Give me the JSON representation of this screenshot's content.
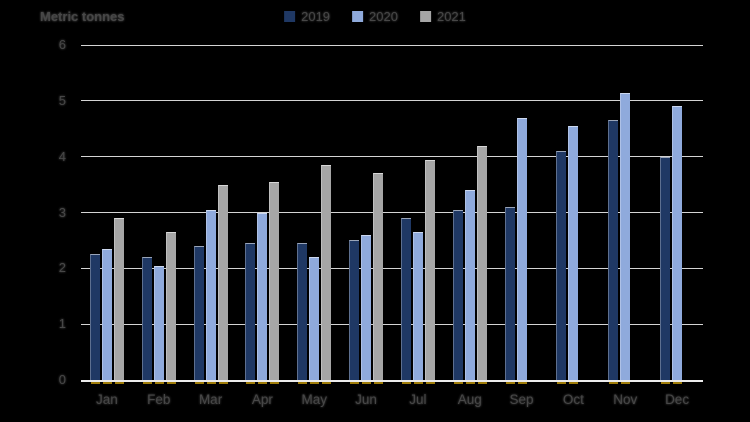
{
  "axis_title": "Metric tonnes",
  "legend": [
    {
      "label": "2019",
      "color": "#1F3864"
    },
    {
      "label": "2020",
      "color": "#8FAADC"
    },
    {
      "label": "2021",
      "color": "#A6A6A6"
    }
  ],
  "colors": {
    "background": "#000000",
    "gridline": "#D4D4D4",
    "axis_line": "#ECECEC",
    "text": "#474747",
    "bar_2019": "#1F3864",
    "bar_2020": "#8FAADC",
    "bar_2021": "#A6A6A6",
    "bar_base_tick": "#A07D0A"
  },
  "chart_data": {
    "type": "bar",
    "title": "Metric tonnes",
    "categories": [
      "Jan",
      "Feb",
      "Mar",
      "Apr",
      "May",
      "Jun",
      "Jul",
      "Aug",
      "Sep",
      "Oct",
      "Nov",
      "Dec"
    ],
    "series": [
      {
        "name": "2019",
        "color": "#1F3864",
        "values": [
          2.25,
          2.2,
          2.4,
          2.45,
          2.45,
          2.5,
          2.9,
          3.05,
          3.1,
          4.1,
          4.65,
          4.0
        ]
      },
      {
        "name": "2020",
        "color": "#8FAADC",
        "values": [
          2.35,
          2.05,
          3.05,
          3.0,
          2.2,
          2.6,
          2.65,
          3.4,
          4.7,
          4.55,
          5.15,
          4.9
        ]
      },
      {
        "name": "2021",
        "color": "#A6A6A6",
        "values": [
          2.9,
          2.65,
          3.5,
          3.55,
          3.85,
          3.7,
          3.95,
          4.2,
          null,
          null,
          null,
          null
        ]
      }
    ],
    "xlabel": "",
    "ylabel": "Metric tonnes",
    "ylim": [
      0,
      6
    ],
    "yticks": [
      0,
      1,
      2,
      3,
      4,
      5,
      6
    ],
    "grid": true,
    "legend_position": "top-center"
  }
}
